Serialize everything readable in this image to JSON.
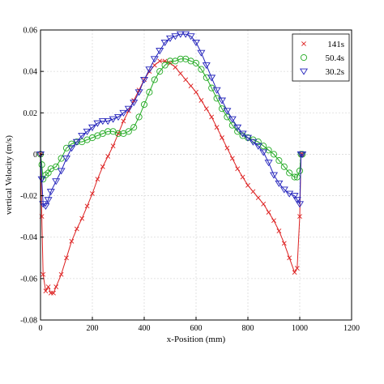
{
  "chart_data": {
    "type": "line",
    "title": "",
    "xlabel": "x-Position (mm)",
    "ylabel": "vertical Velocity (m/s)",
    "xlim": [
      0,
      1200
    ],
    "ylim": [
      -0.08,
      0.06
    ],
    "xticks": [
      0,
      200,
      400,
      600,
      800,
      1000,
      1200
    ],
    "yticks": [
      0.06,
      0.04,
      0.02,
      0,
      -0.02,
      -0.04,
      -0.06,
      -0.08
    ],
    "xtick_labels": [
      "0",
      "200",
      "400",
      "600",
      "800",
      "1000",
      "1200"
    ],
    "ytick_labels": [
      "0.06",
      "0.04",
      "0.02",
      "0",
      "-0.02",
      "-0.04",
      "-0.06",
      "-0.08"
    ],
    "grid": true,
    "legend_position": "top-right",
    "series": [
      {
        "name": "141s",
        "marker": "x",
        "color": "#dd2222",
        "x": [
          0,
          5,
          10,
          20,
          30,
          40,
          50,
          60,
          80,
          100,
          120,
          140,
          160,
          180,
          200,
          220,
          240,
          260,
          280,
          300,
          320,
          340,
          360,
          380,
          400,
          420,
          440,
          460,
          480,
          500,
          520,
          540,
          560,
          580,
          600,
          620,
          640,
          660,
          680,
          700,
          720,
          740,
          760,
          780,
          800,
          820,
          840,
          860,
          880,
          900,
          920,
          940,
          960,
          980,
          990,
          1000,
          1005,
          1010
        ],
        "y": [
          0,
          -0.03,
          -0.058,
          -0.066,
          -0.064,
          -0.067,
          -0.067,
          -0.064,
          -0.058,
          -0.05,
          -0.042,
          -0.036,
          -0.031,
          -0.025,
          -0.019,
          -0.012,
          -0.006,
          -0.001,
          0.004,
          0.01,
          0.016,
          0.021,
          0.026,
          0.031,
          0.036,
          0.04,
          0.043,
          0.045,
          0.045,
          0.044,
          0.042,
          0.039,
          0.036,
          0.033,
          0.03,
          0.026,
          0.022,
          0.018,
          0.013,
          0.008,
          0.003,
          -0.002,
          -0.007,
          -0.011,
          -0.015,
          -0.018,
          -0.021,
          -0.024,
          -0.028,
          -0.032,
          -0.037,
          -0.043,
          -0.05,
          -0.057,
          -0.055,
          -0.03,
          0,
          0
        ]
      },
      {
        "name": "50.4s",
        "marker": "o",
        "color": "#22aa22",
        "x": [
          0,
          5,
          10,
          20,
          30,
          40,
          60,
          80,
          100,
          120,
          140,
          160,
          180,
          200,
          220,
          240,
          260,
          280,
          300,
          320,
          340,
          360,
          380,
          400,
          420,
          440,
          460,
          480,
          500,
          520,
          540,
          560,
          580,
          600,
          620,
          640,
          660,
          680,
          700,
          720,
          740,
          760,
          780,
          800,
          820,
          840,
          860,
          880,
          900,
          920,
          940,
          960,
          980,
          990,
          1000,
          1005,
          1010
        ],
        "y": [
          0,
          -0.005,
          -0.012,
          -0.01,
          -0.009,
          -0.007,
          -0.006,
          -0.002,
          0.003,
          0.005,
          0.006,
          0.006,
          0.007,
          0.008,
          0.009,
          0.01,
          0.011,
          0.011,
          0.01,
          0.01,
          0.011,
          0.013,
          0.018,
          0.024,
          0.03,
          0.036,
          0.04,
          0.043,
          0.045,
          0.045,
          0.046,
          0.046,
          0.045,
          0.044,
          0.041,
          0.037,
          0.032,
          0.027,
          0.022,
          0.018,
          0.014,
          0.011,
          0.009,
          0.008,
          0.007,
          0.006,
          0.004,
          0.002,
          0,
          -0.003,
          -0.006,
          -0.009,
          -0.011,
          -0.011,
          -0.008,
          0,
          0
        ]
      },
      {
        "name": "30.2s",
        "marker": "v",
        "color": "#2222bb",
        "x": [
          0,
          5,
          10,
          20,
          30,
          40,
          60,
          80,
          100,
          120,
          140,
          160,
          180,
          200,
          220,
          240,
          260,
          280,
          300,
          320,
          340,
          360,
          380,
          400,
          420,
          440,
          460,
          480,
          500,
          520,
          540,
          560,
          580,
          600,
          620,
          640,
          660,
          680,
          700,
          720,
          740,
          760,
          780,
          800,
          820,
          840,
          860,
          880,
          900,
          920,
          940,
          960,
          980,
          990,
          1000,
          1005,
          1010
        ],
        "y": [
          0,
          -0.012,
          -0.024,
          -0.025,
          -0.022,
          -0.018,
          -0.013,
          -0.008,
          -0.002,
          0.003,
          0.006,
          0.009,
          0.011,
          0.013,
          0.015,
          0.016,
          0.016,
          0.017,
          0.018,
          0.02,
          0.022,
          0.025,
          0.03,
          0.036,
          0.041,
          0.046,
          0.05,
          0.054,
          0.056,
          0.057,
          0.058,
          0.058,
          0.057,
          0.054,
          0.049,
          0.043,
          0.037,
          0.031,
          0.026,
          0.021,
          0.017,
          0.013,
          0.01,
          0.008,
          0.006,
          0.004,
          0.001,
          -0.004,
          -0.01,
          -0.014,
          -0.017,
          -0.019,
          -0.02,
          -0.022,
          -0.024,
          0,
          0
        ]
      }
    ]
  }
}
